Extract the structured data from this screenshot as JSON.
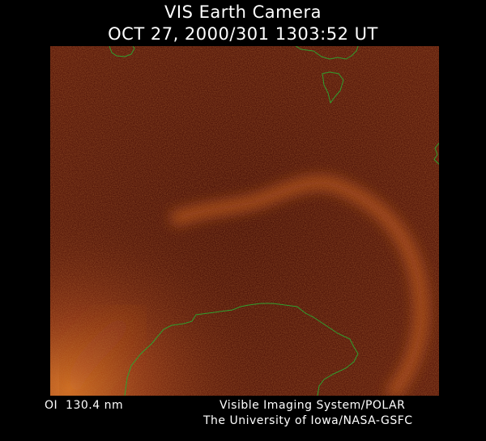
{
  "header": {
    "title": "VIS Earth Camera",
    "timestamp": "OCT 27, 2000/301 1303:52 UT"
  },
  "image": {
    "description_colormap": [
      "#3e0e06",
      "#c8501a",
      "#ffb050"
    ],
    "coastline_color": "#2fa02f"
  },
  "footer": {
    "band": "OI  130.4 nm",
    "instrument": "Visible Imaging System/POLAR",
    "institution": "The University of Iowa/NASA-GSFC"
  }
}
